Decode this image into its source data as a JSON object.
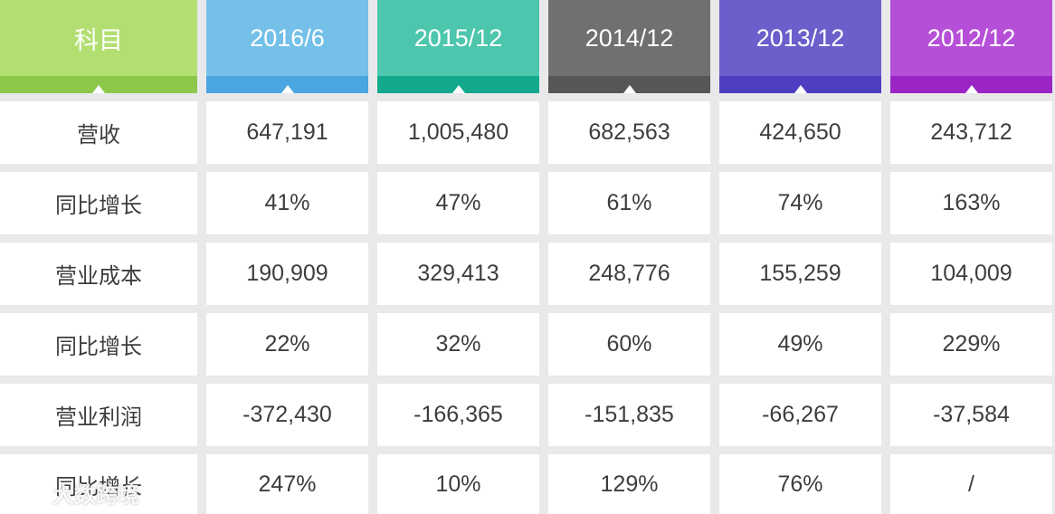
{
  "colors": {
    "page_background": "#e9e9eb",
    "cell_background": "#ffffff",
    "cell_text": "#3d3d3d",
    "header_text": "#ffffff"
  },
  "header": [
    {
      "label": "科目",
      "top": "#b3de72",
      "band": "#8dc84a"
    },
    {
      "label": "2016/6",
      "top": "#74c0e8",
      "band": "#4aa5e0"
    },
    {
      "label": "2015/12",
      "top": "#4cc6ad",
      "band": "#12a98c"
    },
    {
      "label": "2014/12",
      "top": "#6f7170",
      "band": "#555756"
    },
    {
      "label": "2013/12",
      "top": "#6a5fcb",
      "band": "#4d3fbf"
    },
    {
      "label": "2012/12",
      "top": "#b64fd8",
      "band": "#9a25c4"
    }
  ],
  "rows": [
    {
      "label": "营收",
      "values": [
        "647,191",
        "1,005,480",
        "682,563",
        "424,650",
        "243,712"
      ]
    },
    {
      "label": "同比增长",
      "values": [
        "41%",
        "47%",
        "61%",
        "74%",
        "163%"
      ]
    },
    {
      "label": "营业成本",
      "values": [
        "190,909",
        "329,413",
        "248,776",
        "155,259",
        "104,009"
      ]
    },
    {
      "label": "同比增长",
      "values": [
        "22%",
        "32%",
        "60%",
        "49%",
        "229%"
      ]
    },
    {
      "label": "营业利润",
      "values": [
        "-372,430",
        "-166,365",
        "-151,835",
        "-66,267",
        "-37,584"
      ]
    },
    {
      "label": "同比增长",
      "values": [
        "247%",
        "10%",
        "129%",
        "76%",
        "/"
      ]
    }
  ],
  "watermark": {
    "logo_icon": "logo-icon",
    "text": "大数跨境"
  }
}
